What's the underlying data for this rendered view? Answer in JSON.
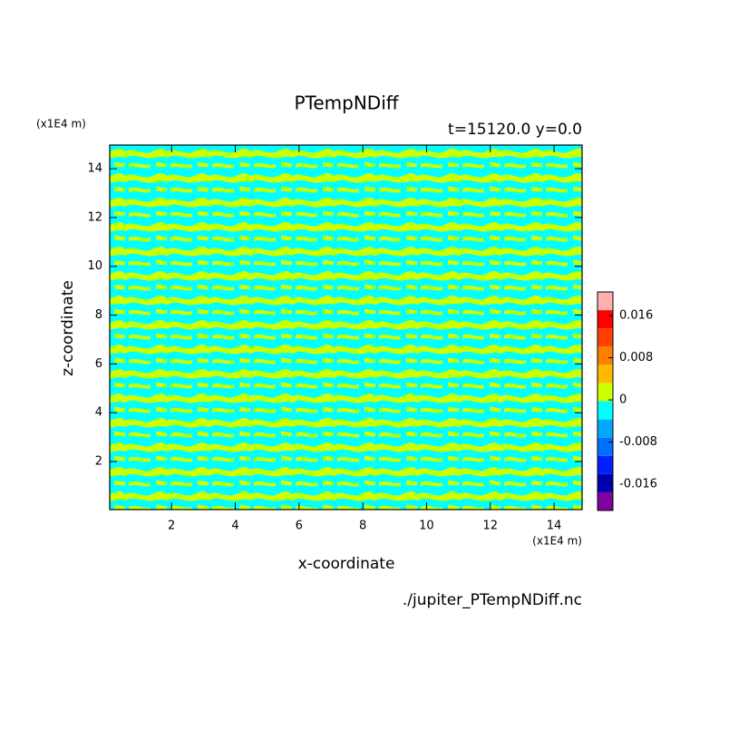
{
  "chart_data": {
    "type": "contour",
    "title": "PTempNDiff",
    "subtitle": "t=15120.0 y=0.0",
    "x_label": "x-coordinate",
    "y_label": "z-coordinate",
    "x_unit": "(x1E4 m)",
    "y_unit": "(x1E4 m)",
    "source": "./jupiter_PTempNDiff.nc",
    "xlim": [
      0.06,
      14.88
    ],
    "ylim": [
      0.03,
      14.97
    ],
    "xticks": [
      2,
      4,
      6,
      8,
      10,
      12,
      14
    ],
    "yticks": [
      2,
      4,
      6,
      8,
      10,
      12,
      14
    ],
    "colorbar": {
      "lim": [
        -0.021,
        0.0205
      ],
      "ticks": [
        -0.016,
        -0.008,
        0,
        0.008,
        0.016
      ],
      "colors": [
        "#8000a0",
        "#0000b0",
        "#0020ff",
        "#0070ff",
        "#00a8ff",
        "#00ffff",
        "#ccff00",
        "#ffbb00",
        "#ff8000",
        "#ff4000",
        "#ff0000",
        "#ffb0b0"
      ]
    }
  }
}
